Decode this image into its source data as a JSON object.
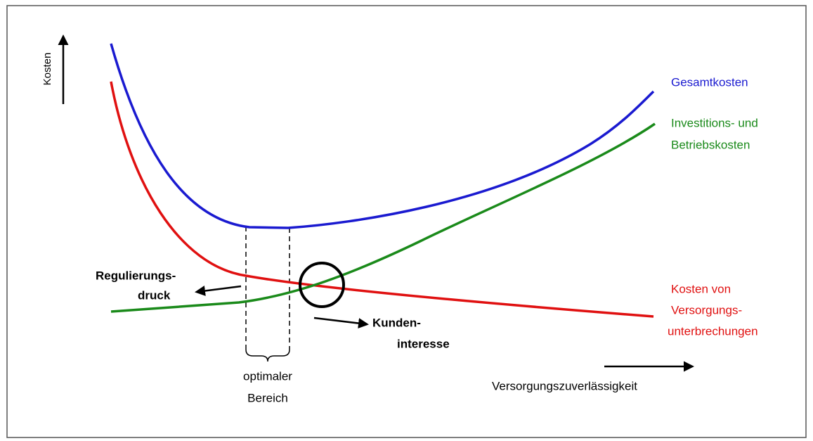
{
  "y_axis": {
    "label": "Kosten"
  },
  "x_axis": {
    "label": "Versorgungszuverlässigkeit"
  },
  "curves": {
    "total": {
      "lines": [
        "Gesamtkosten"
      ]
    },
    "investment": {
      "lines": [
        "Investitions- und",
        "Betriebskosten"
      ]
    },
    "interruption": {
      "lines": [
        "Kosten von",
        "Versorgungs-",
        "unterbrechungen"
      ]
    }
  },
  "annotations": {
    "regulation": {
      "lines": [
        "Regulierungs-",
        "druck"
      ]
    },
    "customer": {
      "lines": [
        "Kunden-",
        "interesse"
      ]
    },
    "optimum": {
      "lines": [
        "optimaler",
        "Bereich"
      ]
    }
  }
}
